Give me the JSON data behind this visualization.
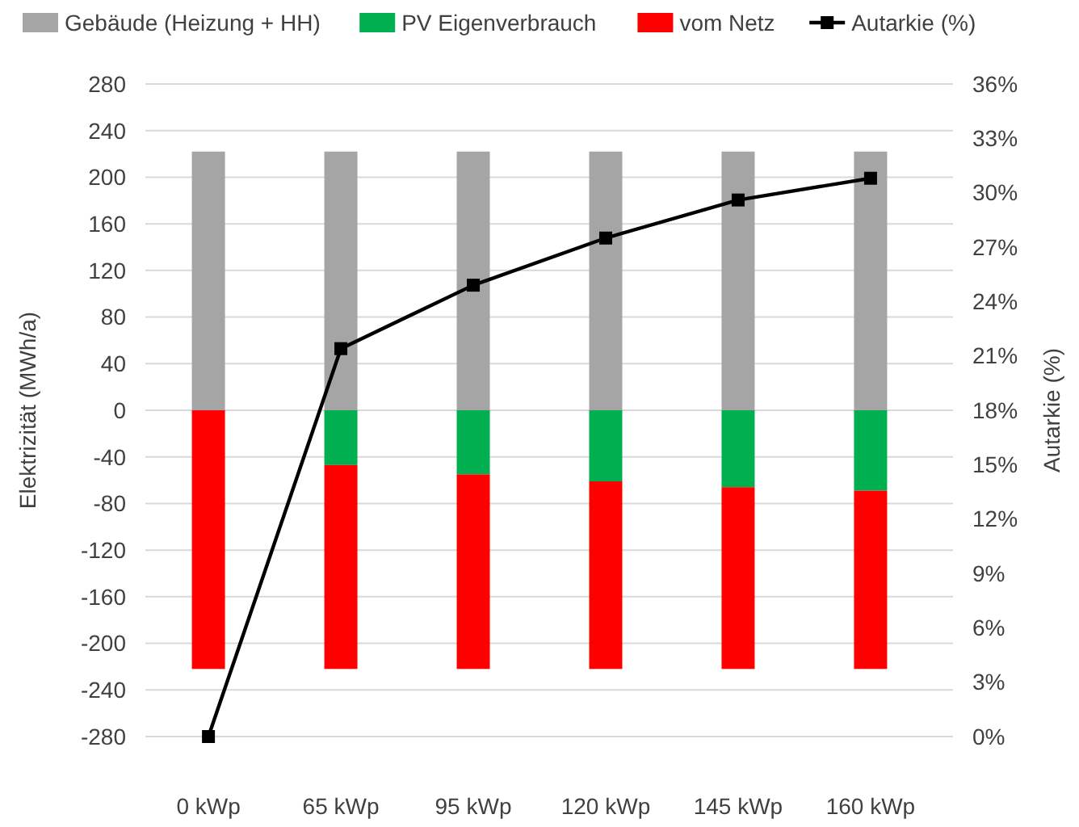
{
  "chart_data": {
    "type": "bar",
    "stacked": true,
    "categories": [
      "0 kWp",
      "65 kWp",
      "95 kWp",
      "120 kWp",
      "145 kWp",
      "160 kWp"
    ],
    "ylabel": "Elektrizität (MWh/a)",
    "y2label": "Autarkie (%)",
    "ylim": [
      -280,
      280
    ],
    "yticks": [
      -280,
      -240,
      -200,
      -160,
      -120,
      -80,
      -40,
      0,
      40,
      80,
      120,
      160,
      200,
      240,
      280
    ],
    "y2lim": [
      0,
      36
    ],
    "y2ticks": [
      {
        "value": 0,
        "label": "0%"
      },
      {
        "value": 3,
        "label": "3%"
      },
      {
        "value": 6,
        "label": "6%"
      },
      {
        "value": 9,
        "label": "9%"
      },
      {
        "value": 12,
        "label": "12%"
      },
      {
        "value": 15,
        "label": "15%"
      },
      {
        "value": 18,
        "label": "18%"
      },
      {
        "value": 21,
        "label": "21%"
      },
      {
        "value": 24,
        "label": "24%"
      },
      {
        "value": 27,
        "label": "27%"
      },
      {
        "value": 30,
        "label": "30%"
      },
      {
        "value": 33,
        "label": "33%"
      },
      {
        "value": 36,
        "label": "36%"
      }
    ],
    "grid": "y",
    "legend": "top",
    "series": [
      {
        "name": "Gebäude (Heizung + HH)",
        "color": "#a5a5a5",
        "values": [
          222,
          222,
          222,
          222,
          222,
          222
        ]
      },
      {
        "name": "PV Eigenverbrauch",
        "color": "#00b050",
        "values": [
          0,
          -47,
          -55,
          -61,
          -66,
          -69
        ]
      },
      {
        "name": "vom Netz",
        "color": "#ff0000",
        "values": [
          -222,
          -175,
          -167,
          -161,
          -156,
          -153
        ]
      },
      {
        "name": "Autarkie (%)",
        "type": "line",
        "axis": "y2",
        "color": "#000000",
        "marker": "square",
        "line_style": "solid",
        "values": [
          0,
          21.4,
          24.9,
          27.5,
          29.6,
          30.8
        ]
      }
    ]
  }
}
